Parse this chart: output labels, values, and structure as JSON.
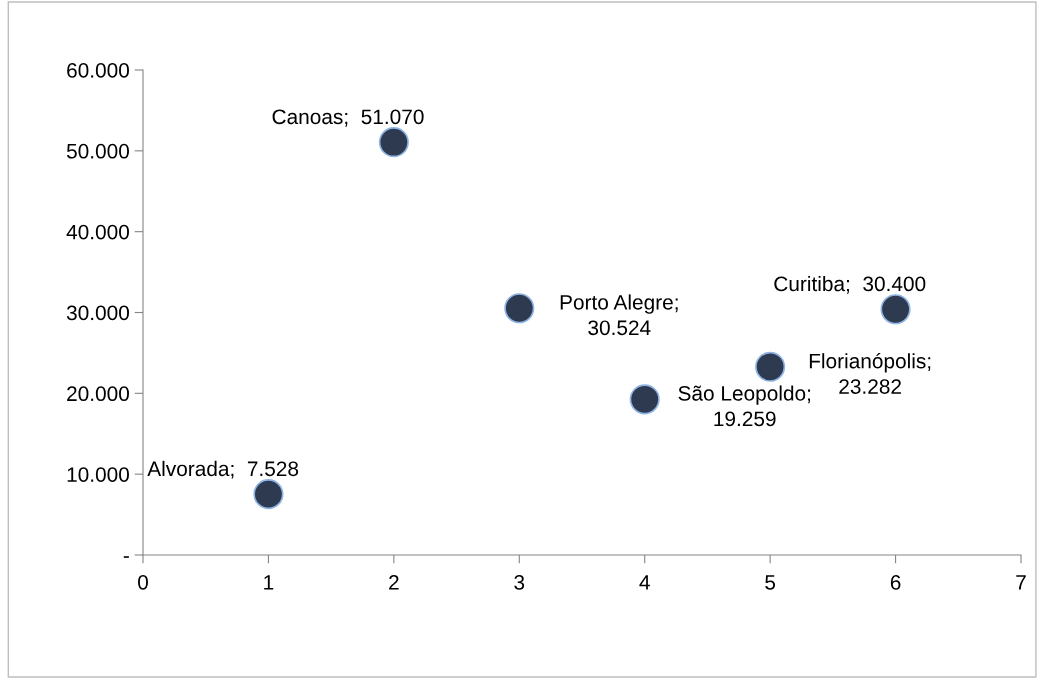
{
  "chart_data": {
    "type": "scatter",
    "x": [
      1,
      2,
      3,
      4,
      5,
      6
    ],
    "values": [
      7528,
      51070,
      30524,
      19259,
      23282,
      30400
    ],
    "value_labels": [
      "Alvorada;  7.528",
      "Canoas;  51.070",
      "Porto Alegre;\n30.524",
      "São Leopoldo;\n19.259",
      "Florianópolis;\n23.282",
      "Curitiba;  30.400"
    ],
    "color": "#2e3a4f",
    "marker": "circle",
    "xlim": [
      0,
      7
    ],
    "xticks": [
      0,
      1,
      2,
      3,
      4,
      5,
      6,
      7
    ],
    "ylim": [
      0,
      60000
    ],
    "yticks": [
      {
        "value": 0,
        "label": "-"
      },
      {
        "value": 10000,
        "label": "10.000"
      },
      {
        "value": 20000,
        "label": "20.000"
      },
      {
        "value": 30000,
        "label": "30.000"
      },
      {
        "value": 40000,
        "label": "40.000"
      },
      {
        "value": 50000,
        "label": "50.000"
      },
      {
        "value": 60000,
        "label": "60.000"
      }
    ],
    "grid": false,
    "legend": false
  }
}
